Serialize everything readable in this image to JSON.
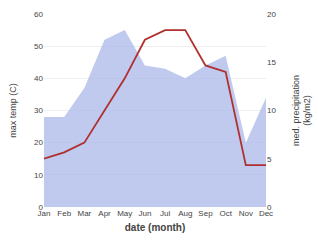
{
  "chart_data": {
    "type": "line",
    "categories": [
      "Jan",
      "Feb",
      "Mar",
      "Apr",
      "May",
      "Jun",
      "Jul",
      "Aug",
      "Sep",
      "Oct",
      "Nov",
      "Dec"
    ],
    "series": [
      {
        "type": "area",
        "color": "#aab8e8",
        "values": [
          28,
          28,
          37,
          52,
          55,
          44,
          43,
          40,
          44,
          47,
          20,
          34
        ]
      },
      {
        "type": "line",
        "color": "#b03030",
        "values": [
          15,
          17,
          20,
          30,
          40,
          52,
          55,
          55,
          44,
          42,
          13,
          13
        ]
      }
    ],
    "xlabel": "date (month)",
    "ylabel": "max temp (C)",
    "y2label": "med. precipitation\n(kg/m2)",
    "ylim": [
      0,
      60
    ],
    "yticks": [
      0,
      10,
      20,
      30,
      40,
      50,
      60
    ],
    "y2lim": [
      0,
      20
    ],
    "y2ticks": [
      0,
      5,
      10,
      15,
      20
    ],
    "grid": true
  }
}
